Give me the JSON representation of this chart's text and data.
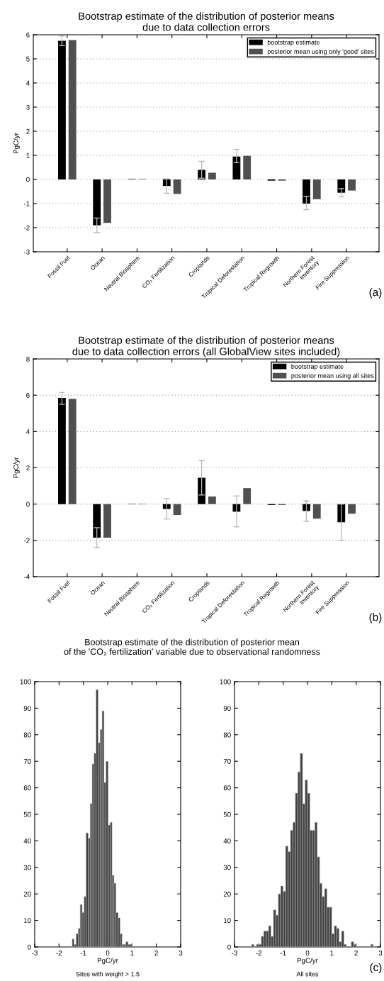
{
  "chart_data": [
    {
      "type": "bar",
      "title": "Bootstrap estimate of the distribution of posterior means\ndue to data collection errors",
      "ylabel": "PgC/yr",
      "categories": [
        "Fossil Fuel",
        "Ocean",
        "Neutral Biosphere",
        "CO₂ Fertilization",
        "Croplands",
        "Tropical Deforestation",
        "Tropical Regrowth",
        "Northern Forest\nInventory",
        "Fire Suppression"
      ],
      "series": [
        {
          "name": "bootstrap estimate",
          "color": "#000000",
          "values": [
            5.75,
            -1.9,
            0.02,
            -0.27,
            0.4,
            0.95,
            -0.05,
            -1.0,
            -0.55
          ],
          "errors": [
            [
              5.55,
              5.95
            ],
            [
              -2.2,
              -1.6
            ],
            null,
            [
              -0.57,
              0.03
            ],
            [
              0.05,
              0.75
            ],
            [
              0.7,
              1.25
            ],
            null,
            [
              -1.25,
              -0.7
            ],
            [
              -0.72,
              -0.38
            ]
          ]
        },
        {
          "name": "posterior mean using only 'good' sites",
          "color": "#505050",
          "values": [
            5.78,
            -1.8,
            0.02,
            -0.6,
            0.28,
            0.98,
            -0.05,
            -0.82,
            -0.46
          ]
        }
      ],
      "ylim": [
        -3,
        6
      ],
      "yticks": [
        -3,
        -2,
        -1,
        0,
        1,
        2,
        3,
        4,
        5,
        6
      ],
      "grid": "y",
      "legend": "top right",
      "annotations": [
        "(a)"
      ]
    },
    {
      "type": "bar",
      "title": "Bootstrap estimate of the distribution of posterior means\ndue to data collection errors (all GlobalView sites included)",
      "ylabel": "PgC/yr",
      "categories": [
        "Fossil Fuel",
        "Ocean",
        "Neutral Biosphere",
        "CO₂ Fertilization",
        "Croplands",
        "Tropical Deforestation",
        "Tropical Regrowth",
        "Northern Forest\nInventory",
        "Fire Suppression"
      ],
      "series": [
        {
          "name": "bootstrap estimate",
          "color": "#000000",
          "values": [
            5.85,
            -1.85,
            0.02,
            -0.27,
            1.45,
            -0.42,
            -0.05,
            -0.38,
            -1.0
          ],
          "errors": [
            [
              5.5,
              6.15
            ],
            [
              -2.4,
              -1.3
            ],
            null,
            [
              -0.82,
              0.3
            ],
            [
              0.5,
              2.4
            ],
            [
              -1.25,
              0.45
            ],
            null,
            [
              -0.95,
              0.18
            ],
            [
              -2.0,
              0.0
            ]
          ]
        },
        {
          "name": "posterior mean using all sites",
          "color": "#505050",
          "values": [
            5.8,
            -1.85,
            0.02,
            -0.6,
            0.42,
            0.88,
            -0.05,
            -0.8,
            -0.53
          ]
        }
      ],
      "ylim": [
        -4,
        8
      ],
      "yticks": [
        -4,
        -2,
        0,
        2,
        4,
        6,
        8
      ],
      "grid": "y",
      "legend": "top right",
      "annotations": [
        "(b)"
      ]
    },
    {
      "type": "histogram",
      "title": "Bootstrap estimate of the distribution of posterior mean\nof the 'CO₂ fertilization' variable due to observational randomness",
      "xlabel": "PgC/yr",
      "color": "#404040",
      "bins": [
        -1.46,
        -1.38,
        -1.3,
        -1.21,
        -1.13,
        -1.05,
        -0.97,
        -0.89,
        -0.8,
        -0.72,
        -0.64,
        -0.56,
        -0.48,
        -0.39,
        -0.31,
        -0.23,
        -0.15,
        -0.07,
        0.02,
        0.1,
        0.18,
        0.26,
        0.34,
        0.43,
        0.51,
        0.59,
        0.67,
        0.75,
        0.84,
        0.92,
        1.0
      ],
      "values": [
        3,
        1,
        5,
        7,
        16,
        13,
        19,
        43,
        41,
        54,
        69,
        73,
        97,
        77,
        82,
        89,
        62,
        70,
        46,
        47,
        27,
        24,
        13,
        11,
        5,
        1,
        1,
        2,
        1,
        1
      ],
      "xlim": [
        -3,
        3
      ],
      "xticks": [
        -3,
        -2,
        -1,
        0,
        1,
        2,
        3
      ],
      "ylim": [
        0,
        100
      ],
      "yticks": [
        0,
        10,
        20,
        30,
        40,
        50,
        60,
        70,
        80,
        90,
        100
      ],
      "annotations": [
        "Sites with weight > 1.5"
      ]
    },
    {
      "type": "histogram",
      "xlabel": "PgC/yr",
      "color": "#404040",
      "bins": [
        -2.3,
        -2.2,
        -2.1,
        -2.0,
        -1.9,
        -1.8,
        -1.7,
        -1.6,
        -1.5,
        -1.4,
        -1.3,
        -1.2,
        -1.1,
        -1.0,
        -0.9,
        -0.8,
        -0.7,
        -0.6,
        -0.5,
        -0.4,
        -0.3,
        -0.2,
        -0.1,
        0.0,
        0.1,
        0.2,
        0.3,
        0.4,
        0.5,
        0.6,
        0.7,
        0.8,
        0.9,
        1.0,
        1.1,
        1.2,
        1.3,
        1.4,
        1.5,
        1.6,
        1.7,
        1.8,
        1.9,
        2.0,
        2.1,
        2.2,
        2.3,
        2.4,
        2.5,
        2.6,
        2.7
      ],
      "values": [
        1,
        0,
        1,
        1,
        4,
        6,
        6,
        8,
        4,
        14,
        12,
        20,
        23,
        21,
        38,
        36,
        44,
        47,
        58,
        66,
        73,
        54,
        63,
        58,
        44,
        44,
        47,
        34,
        24,
        19,
        22,
        15,
        15,
        5,
        8,
        7,
        2,
        6,
        1,
        0,
        0,
        2,
        1,
        0,
        0,
        0,
        0,
        0,
        0,
        1
      ],
      "xlim": [
        -3,
        3
      ],
      "xticks": [
        -3,
        -2,
        -1,
        0,
        1,
        2,
        3
      ],
      "ylim": [
        0,
        100
      ],
      "yticks": [
        0,
        10,
        20,
        30,
        40,
        50,
        60,
        70,
        80,
        90,
        100
      ],
      "annotations": [
        "All sites",
        "(c)"
      ]
    }
  ]
}
